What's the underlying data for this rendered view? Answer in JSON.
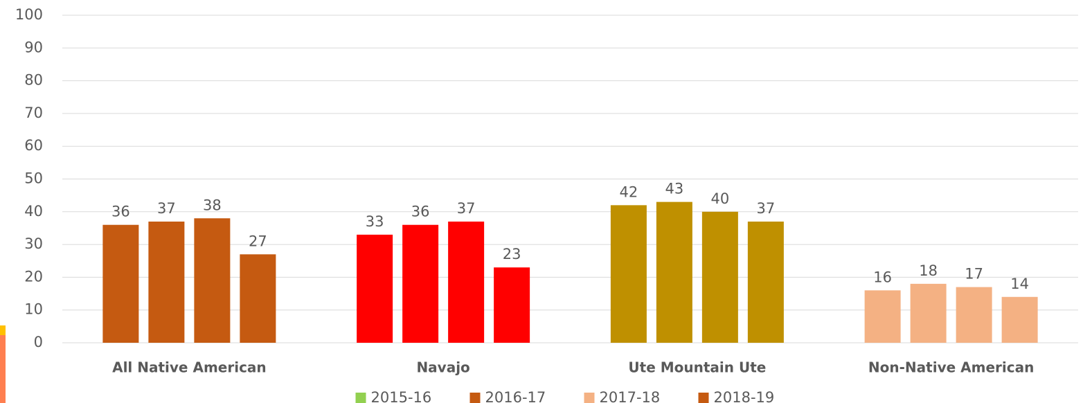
{
  "chart_data": {
    "type": "bar",
    "categories": [
      "All Native American",
      "Navajo",
      "Ute Mountain Ute",
      "Non-Native American"
    ],
    "category_colors": [
      "#c55a11",
      "#ff0000",
      "#bf9000",
      "#f4b183"
    ],
    "series": [
      {
        "name": "2015-16",
        "color": "#92d050",
        "values": [
          36,
          33,
          42,
          16
        ]
      },
      {
        "name": "2016-17",
        "color": "#c55a11",
        "values": [
          37,
          36,
          43,
          18
        ]
      },
      {
        "name": "2017-18",
        "color": "#f4b183",
        "values": [
          38,
          37,
          40,
          17
        ]
      },
      {
        "name": "2018-19",
        "color": "#c55a11",
        "values": [
          27,
          23,
          37,
          14
        ]
      }
    ],
    "ylim": [
      0,
      100
    ],
    "yticks": [
      0,
      10,
      20,
      30,
      40,
      50,
      60,
      70,
      80,
      90,
      100
    ],
    "grid": true,
    "legend": "bottom",
    "data_labels": true
  }
}
